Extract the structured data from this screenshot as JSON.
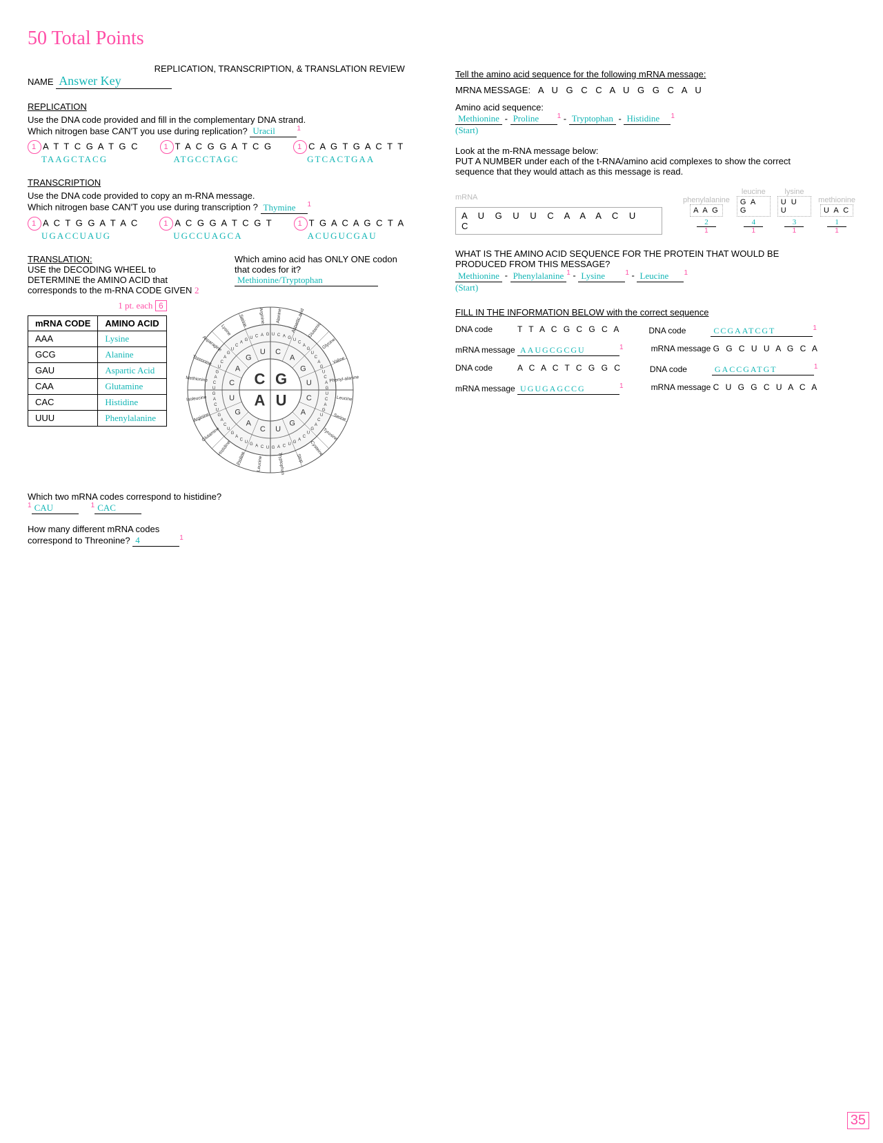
{
  "header": {
    "total_points": "50 Total Points",
    "title": "REPLICATION, TRANSCRIPTION, & TRANSLATION REVIEW",
    "name_label": "NAME",
    "name_value": "Answer Key"
  },
  "replication": {
    "heading": "REPLICATION",
    "line1": "Use the DNA code provided and fill in the complementary DNA strand.",
    "line2_a": "Which nitrogen base CAN'T you use during replication?",
    "line2_ans": "Uracil",
    "rows": [
      {
        "dna": "A T T C G A T G C",
        "ans": "TAAGCTACG"
      },
      {
        "dna": "T A C G G A T C G",
        "ans": "ATGCCTAGC"
      },
      {
        "dna": "C A G T G A C T T",
        "ans": "GTCACTGAA"
      }
    ]
  },
  "transcription": {
    "heading": "TRANSCRIPTION",
    "line1": "Use the DNA code provided to copy an m-RNA message.",
    "line2_a": "Which nitrogen base CAN'T you use during transcription ?",
    "line2_ans": "Thymine",
    "rows": [
      {
        "dna": "A C T G G A T A C",
        "ans": "UGACCUAUG"
      },
      {
        "dna": "A C G G A T C G T",
        "ans": "UGCCUAGCA"
      },
      {
        "dna": "T G A C A G C T A",
        "ans": "ACUGUCGAU"
      }
    ]
  },
  "translation": {
    "heading": "TRANSLATION:",
    "instr1": "USE the DECODING WHEEL to",
    "instr2": "DETERMINE the AMINO ACID that",
    "instr3": "corresponds to the m-RNA CODE GIVEN",
    "side_q1": "Which amino acid has ONLY ONE codon",
    "side_q2": "that codes for it?",
    "side_ans": "Methionine/Tryptophan",
    "side_pts": "2",
    "pt_each": "1 pt. each",
    "pt_box": "6",
    "table_hdr_code": "mRNA CODE",
    "table_hdr_aa": "AMINO ACID",
    "table": [
      {
        "code": "AAA",
        "aa": "Lysine"
      },
      {
        "code": "GCG",
        "aa": "Alanine"
      },
      {
        "code": "GAU",
        "aa": "Aspartic Acid"
      },
      {
        "code": "CAA",
        "aa": "Glutamine"
      },
      {
        "code": "CAC",
        "aa": "Histidine"
      },
      {
        "code": "UUU",
        "aa": "Phenylalanine"
      }
    ]
  },
  "histidine_q": {
    "q": "Which two mRNA codes correspond to histidine?",
    "a1": "CAU",
    "a2": "CAC"
  },
  "threonine_q": {
    "q_a": "How many different mRNA codes",
    "q_b": "correspond to Threonine?",
    "ans": "4"
  },
  "right": {
    "tell_line": "Tell the amino acid sequence for the following mRNA message:",
    "mrna_lbl": "MRNA MESSAGE:",
    "mrna_seq": "A U G  C C A  U G G  C A U",
    "aa_lbl": "Amino acid sequence:",
    "aa_ans": [
      "Methionine",
      "Proline",
      "Tryptophan",
      "Histidine"
    ],
    "aa_note": "(Start)",
    "look_line1": "Look at the m-RNA message below:",
    "look_line2": "PUT A NUMBER under each of the t-RNA/amino acid complexes to show the correct",
    "look_line3": "sequence that they would attach as this message is read.",
    "mrna_strip": "A U G U U C A A A C U C",
    "mrna_strip_label": "mRNA",
    "trnas": [
      {
        "aa": "phenylalanine",
        "anti": "A A G",
        "num": "2"
      },
      {
        "aa": "leucine",
        "anti": "G A G",
        "num": "4"
      },
      {
        "aa": "lysine",
        "anti": "U U U",
        "num": "3"
      },
      {
        "aa": "methionine",
        "anti": "U A C",
        "num": "1"
      }
    ],
    "what_q1": "WHAT IS THE AMINO ACID SEQUENCE FOR THE PROTEIN THAT WOULD BE",
    "what_q2": "PRODUCED FROM THIS MESSAGE?",
    "what_ans": [
      "Methionine",
      "Phenylalanine",
      "Lysine",
      "Leucine"
    ],
    "what_note": "(Start)",
    "fill_hdr": "FILL IN THE INFORMATION BELOW with the correct sequence",
    "fills": [
      {
        "l_lbl": "DNA code",
        "l_val": "T T A C G C G C A",
        "r_lbl": "DNA code",
        "r_val": "CCGAATCGT",
        "r_hand": true
      },
      {
        "l_lbl": "mRNA message",
        "l_val": "AAUGCGCGU",
        "l_hand": true,
        "r_lbl": "mRNA message",
        "r_val": "G G C U U A G C A"
      },
      {
        "l_lbl": "DNA code",
        "l_val": "A C A C T C G G C",
        "r_lbl": "DNA code",
        "r_val": "GACCGATGT",
        "r_hand": true
      },
      {
        "l_lbl": "mRNA message",
        "l_val": "UGUGAGCCG",
        "l_hand": true,
        "r_lbl": "mRNA message",
        "r_val": "C U G G C U A C A"
      }
    ]
  },
  "page_num": "35",
  "wheel": {
    "center": [
      "G",
      "U",
      "A",
      "C"
    ],
    "ring2_per_quad": [
      "C",
      "A",
      "G",
      "U"
    ],
    "outer_aa": [
      "Alanine",
      "Aspartic acid",
      "Glutamic",
      "Glycine",
      "Valine",
      "Phenyl-alanine",
      "Leucine",
      "Serine",
      "Tyrosine",
      "Cysteine",
      "Stop",
      "Tryptophan",
      "Leucine",
      "Proline",
      "Histidine",
      "Glutamine",
      "Arginine",
      "Isoleucine",
      "Methionine",
      "Threonine",
      "Asparagine",
      "Lysine",
      "Serine",
      "Arginine"
    ],
    "colors": {
      "ring_fill": "#d8d8d8",
      "ring_stroke": "#555",
      "text": "#333"
    }
  }
}
